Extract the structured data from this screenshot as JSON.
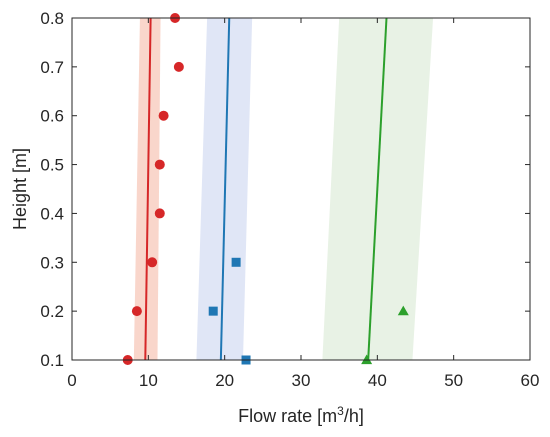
{
  "chart_data": {
    "type": "scatter",
    "title": "",
    "xlabel": "Flow rate [m",
    "xlabel_superscript": "3",
    "xlabel_suffix": "/h]",
    "ylabel": "Height [m]",
    "xlim": [
      0,
      60
    ],
    "ylim": [
      0.1,
      0.8
    ],
    "xticks": [
      "0",
      "10",
      "20",
      "30",
      "40",
      "50",
      "60"
    ],
    "yticks": [
      "0.1",
      "0.2",
      "0.3",
      "0.4",
      "0.5",
      "0.6",
      "0.7",
      "0.8"
    ],
    "xtick_values": [
      0,
      10,
      20,
      30,
      40,
      50,
      60
    ],
    "ytick_values": [
      0.1,
      0.2,
      0.3,
      0.4,
      0.5,
      0.6,
      0.7,
      0.8
    ],
    "grid": false,
    "legend": "none",
    "series": [
      {
        "color": "#d62728",
        "band_color": "#f4b5a0",
        "marker": "circle",
        "points": [
          {
            "x": 7.3,
            "y": 0.1
          },
          {
            "x": 8.5,
            "y": 0.2
          },
          {
            "x": 10.5,
            "y": 0.3
          },
          {
            "x": 11.5,
            "y": 0.4
          },
          {
            "x": 11.5,
            "y": 0.5
          },
          {
            "x": 12.0,
            "y": 0.6
          },
          {
            "x": 14.0,
            "y": 0.7
          },
          {
            "x": 13.5,
            "y": 0.8
          }
        ],
        "fit_line": [
          {
            "x": 9.6,
            "y": 0.1
          },
          {
            "x": 10.3,
            "y": 0.8
          }
        ],
        "band": [
          {
            "x": 8.1,
            "y": 0.1
          },
          {
            "x": 8.9,
            "y": 0.8
          },
          {
            "x": 11.6,
            "y": 0.8
          },
          {
            "x": 11.2,
            "y": 0.1
          }
        ]
      },
      {
        "color": "#1f77b4",
        "band_color": "#c6d2ee",
        "marker": "square",
        "points": [
          {
            "x": 22.8,
            "y": 0.1
          },
          {
            "x": 18.5,
            "y": 0.2
          },
          {
            "x": 21.5,
            "y": 0.3
          }
        ],
        "fit_line": [
          {
            "x": 19.5,
            "y": 0.1
          },
          {
            "x": 20.6,
            "y": 0.8
          }
        ],
        "band": [
          {
            "x": 16.3,
            "y": 0.1
          },
          {
            "x": 17.7,
            "y": 0.8
          },
          {
            "x": 23.6,
            "y": 0.8
          },
          {
            "x": 22.4,
            "y": 0.1
          }
        ]
      },
      {
        "color": "#2ca02c",
        "band_color": "#d5e8cf",
        "marker": "triangle",
        "points": [
          {
            "x": 38.6,
            "y": 0.1
          },
          {
            "x": 43.4,
            "y": 0.2
          }
        ],
        "fit_line": [
          {
            "x": 38.8,
            "y": 0.1
          },
          {
            "x": 41.2,
            "y": 0.8
          }
        ],
        "band": [
          {
            "x": 32.8,
            "y": 0.1
          },
          {
            "x": 35.0,
            "y": 0.8
          },
          {
            "x": 47.3,
            "y": 0.8
          },
          {
            "x": 44.6,
            "y": 0.1
          }
        ]
      }
    ]
  }
}
